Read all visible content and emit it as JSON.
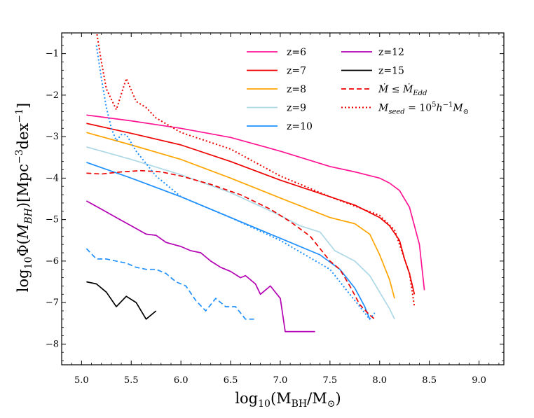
{
  "chart_data": {
    "type": "line",
    "title": "",
    "xlabel": "log10(MBH/M⊙)",
    "ylabel": "log10Φ(MBH)[Mpc−3dex−1]",
    "xlim": [
      4.8,
      9.25
    ],
    "ylim": [
      -8.5,
      -0.5
    ],
    "xticks": [
      5.0,
      5.5,
      6.0,
      6.5,
      7.0,
      7.5,
      8.0,
      8.5,
      9.0
    ],
    "xtick_labels": [
      "5.0",
      "5.5",
      "6.0",
      "6.5",
      "7.0",
      "7.5",
      "8.0",
      "8.5",
      "9.0"
    ],
    "yticks": [
      -8,
      -7,
      -6,
      -5,
      -4,
      -3,
      -2,
      -1
    ],
    "ytick_labels": [
      "−8",
      "−7",
      "−6",
      "−5",
      "−4",
      "−3",
      "−2",
      "−1"
    ],
    "legend_position": "top-right",
    "series": [
      {
        "name": "z=6",
        "legend": "z=6",
        "color": "#ff1493",
        "style": "solid",
        "x": [
          5.05,
          5.5,
          6.0,
          6.5,
          7.0,
          7.5,
          7.75,
          8.0,
          8.1,
          8.2,
          8.3,
          8.4,
          8.45
        ],
        "y": [
          -2.48,
          -2.62,
          -2.8,
          -3.02,
          -3.35,
          -3.72,
          -3.85,
          -4.0,
          -4.12,
          -4.3,
          -4.7,
          -5.6,
          -6.7
        ]
      },
      {
        "name": "z=7",
        "legend": "z=7",
        "color": "#ee0000",
        "style": "solid",
        "x": [
          5.05,
          5.5,
          6.0,
          6.5,
          7.0,
          7.5,
          7.75,
          8.0,
          8.1,
          8.2,
          8.25,
          8.3,
          8.35
        ],
        "y": [
          -2.68,
          -2.92,
          -3.2,
          -3.6,
          -4.05,
          -4.45,
          -4.65,
          -4.95,
          -5.15,
          -5.5,
          -5.95,
          -6.3,
          -6.8
        ]
      },
      {
        "name": "z=8",
        "legend": "z=8",
        "color": "#ffa500",
        "style": "solid",
        "x": [
          5.05,
          5.5,
          6.0,
          6.5,
          7.0,
          7.5,
          7.75,
          7.9,
          8.0,
          8.1,
          8.15
        ],
        "y": [
          -2.9,
          -3.2,
          -3.55,
          -4.0,
          -4.48,
          -4.95,
          -5.1,
          -5.35,
          -5.85,
          -6.45,
          -6.9
        ]
      },
      {
        "name": "z=9",
        "legend": "z=9",
        "color": "#add8e6",
        "style": "solid",
        "x": [
          5.05,
          5.5,
          6.0,
          6.5,
          7.0,
          7.2,
          7.4,
          7.55,
          7.75,
          7.9,
          8.0,
          8.1,
          8.15
        ],
        "y": [
          -3.25,
          -3.55,
          -3.92,
          -4.35,
          -4.9,
          -5.15,
          -5.3,
          -5.75,
          -6.0,
          -6.35,
          -6.75,
          -7.15,
          -7.4
        ]
      },
      {
        "name": "z=10",
        "legend": "z=10",
        "color": "#1e90ff",
        "style": "solid",
        "x": [
          5.05,
          5.5,
          6.0,
          6.5,
          7.0,
          7.4,
          7.6,
          7.75,
          7.85,
          7.9
        ],
        "y": [
          -3.62,
          -4.0,
          -4.45,
          -4.95,
          -5.45,
          -5.85,
          -6.2,
          -6.65,
          -7.1,
          -7.4
        ]
      },
      {
        "name": "z=12",
        "legend": "z=12",
        "color": "#b400b4",
        "style": "solid",
        "x": [
          5.05,
          5.2,
          5.35,
          5.5,
          5.65,
          5.75,
          5.85,
          6.0,
          6.1,
          6.2,
          6.3,
          6.4,
          6.5,
          6.6,
          6.65,
          6.75,
          6.8,
          6.9,
          7.0,
          7.05,
          7.35
        ],
        "y": [
          -4.55,
          -4.75,
          -4.95,
          -5.15,
          -5.35,
          -5.38,
          -5.55,
          -5.65,
          -5.75,
          -5.8,
          -6.0,
          -6.15,
          -6.25,
          -6.4,
          -6.35,
          -6.55,
          -6.8,
          -6.6,
          -6.9,
          -7.7,
          -7.7
        ]
      },
      {
        "name": "z=15",
        "legend": "z=15",
        "color": "#000000",
        "style": "solid",
        "x": [
          5.05,
          5.15,
          5.25,
          5.35,
          5.45,
          5.55,
          5.65,
          5.75
        ],
        "y": [
          -6.5,
          -6.55,
          -6.75,
          -7.1,
          -6.85,
          -7.0,
          -7.4,
          -7.2
        ]
      },
      {
        "name": "z=12 (Mdot ≤ Mdot_Edd)",
        "color": "#1e90ff",
        "style": "dashed",
        "x": [
          5.05,
          5.15,
          5.25,
          5.35,
          5.45,
          5.55,
          5.65,
          5.75,
          5.85,
          5.95,
          6.05,
          6.15,
          6.25,
          6.35,
          6.45,
          6.55,
          6.65,
          6.75
        ],
        "y": [
          -5.7,
          -5.95,
          -5.95,
          -6.0,
          -6.05,
          -6.15,
          -6.2,
          -6.2,
          -6.3,
          -6.5,
          -6.6,
          -6.95,
          -7.2,
          -6.9,
          -7.1,
          -7.1,
          -7.4,
          -7.4
        ]
      },
      {
        "name": "z=7 (Mdot ≤ Mdot_Edd)",
        "color": "#ee0000",
        "style": "dashed",
        "x": [
          5.05,
          5.2,
          5.4,
          5.6,
          5.8,
          6.0,
          6.3,
          6.6,
          6.9,
          7.1,
          7.3,
          7.4,
          7.5,
          7.6,
          7.7,
          7.8,
          7.9,
          7.95
        ],
        "y": [
          -3.88,
          -3.9,
          -3.85,
          -3.82,
          -3.85,
          -3.95,
          -4.15,
          -4.4,
          -4.75,
          -5.05,
          -5.4,
          -5.7,
          -6.0,
          -6.2,
          -6.6,
          -7.05,
          -7.3,
          -7.4
        ]
      },
      {
        "name": "z=7 (Mseed = 1e5/h)",
        "color": "#ee0000",
        "style": "dotted",
        "x": [
          5.15,
          5.2,
          5.25,
          5.3,
          5.35,
          5.45,
          5.55,
          5.65,
          5.75,
          6.0,
          6.5,
          7.0,
          7.5,
          8.0,
          8.15,
          8.3,
          8.35
        ],
        "y": [
          -0.45,
          -1.2,
          -1.85,
          -2.1,
          -2.35,
          -1.6,
          -2.15,
          -2.3,
          -2.55,
          -2.9,
          -3.3,
          -3.95,
          -4.45,
          -4.9,
          -5.25,
          -6.3,
          -7.1
        ]
      },
      {
        "name": "z=10 (Mseed = 1e5/h)",
        "color": "#1e90ff",
        "style": "dotted",
        "x": [
          5.15,
          5.2,
          5.25,
          5.3,
          5.35,
          5.4,
          5.45,
          5.55,
          5.75,
          6.0,
          6.5,
          7.0,
          7.5,
          7.6,
          7.7,
          7.8,
          7.9,
          7.95
        ],
        "y": [
          -0.8,
          -1.6,
          -2.3,
          -2.8,
          -3.1,
          -2.95,
          -2.95,
          -3.35,
          -3.95,
          -4.45,
          -4.95,
          -5.5,
          -6.2,
          -6.5,
          -6.8,
          -7.1,
          -7.4,
          -7.25
        ]
      }
    ],
    "legend": {
      "col1": [
        {
          "label": "z=6",
          "color": "#ff1493",
          "style": "solid"
        },
        {
          "label": "z=7",
          "color": "#ee0000",
          "style": "solid"
        },
        {
          "label": "z=8",
          "color": "#ffa500",
          "style": "solid"
        },
        {
          "label": "z=9",
          "color": "#add8e6",
          "style": "solid"
        },
        {
          "label": "z=10",
          "color": "#1e90ff",
          "style": "solid"
        }
      ],
      "col2": [
        {
          "label": "z=12",
          "color": "#b400b4",
          "style": "solid"
        },
        {
          "label": "z=15",
          "color": "#000000",
          "style": "solid"
        },
        {
          "label": "Ṁ ≤ ṀEdd",
          "color": "#ee0000",
          "style": "dashed"
        },
        {
          "label": "Mseed = 105h−1M⊙",
          "color": "#ee0000",
          "style": "dotted"
        }
      ]
    }
  }
}
